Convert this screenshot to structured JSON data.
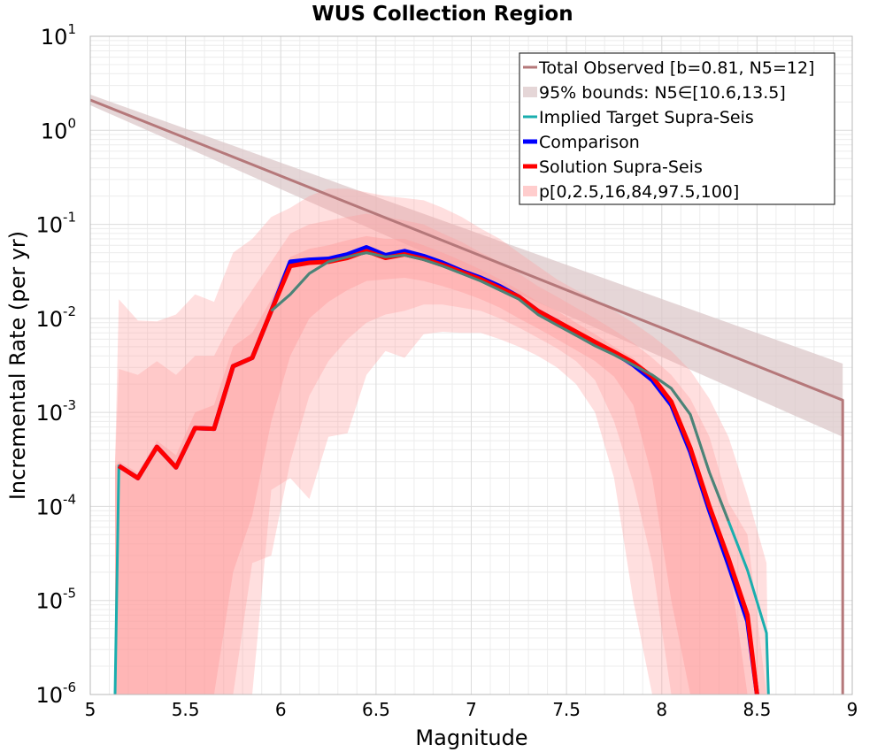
{
  "chart_data": {
    "type": "line",
    "title": "WUS Collection Region",
    "xlabel": "Magnitude",
    "ylabel": "Incremental Rate (per yr)",
    "xlim": [
      5,
      9
    ],
    "ylim": [
      1e-06,
      10
    ],
    "yscale": "log",
    "grid": true,
    "legend_position": "top-right",
    "x_ticks": [
      "5",
      "5.5",
      "6",
      "6.5",
      "7",
      "7.5",
      "8",
      "8.5",
      "9"
    ],
    "y_tick_exponents": [
      "-6",
      "-5",
      "-4",
      "-3",
      "-2",
      "-1",
      "0",
      "1"
    ],
    "y_tick_base": "10",
    "x": [
      5.15,
      5.25,
      5.35,
      5.45,
      5.55,
      5.65,
      5.75,
      5.85,
      5.95,
      6.05,
      6.15,
      6.25,
      6.35,
      6.45,
      6.55,
      6.65,
      6.75,
      6.85,
      6.95,
      7.05,
      7.15,
      7.25,
      7.35,
      7.45,
      7.55,
      7.65,
      7.75,
      7.85,
      7.95,
      8.05,
      8.15,
      8.25,
      8.35,
      8.45,
      8.55
    ],
    "series": [
      {
        "name": "Total Observed [b=0.81, N5=12]",
        "role": "line",
        "color": "#b5787a",
        "x": [
          5.0,
          8.95,
          8.95
        ],
        "values": [
          2.1,
          0.00135,
          1e-06
        ]
      },
      {
        "name": "95% bounds: N5∈[10.6,13.5]",
        "role": "band",
        "color": "#dcc8ca",
        "x": [
          5.0,
          8.95
        ],
        "lower": [
          1.85,
          0.00055
        ],
        "upper": [
          2.4,
          0.0033
        ]
      },
      {
        "name": "Implied Target Supra-Seis",
        "role": "line",
        "color": "#1aaeae",
        "x": [
          5.13,
          5.15,
          5.25,
          5.35,
          5.45,
          5.55,
          5.65,
          5.75,
          5.85,
          5.95,
          6.05,
          6.15,
          6.25,
          6.35,
          6.45,
          6.55,
          6.65,
          6.75,
          6.85,
          6.95,
          7.05,
          7.15,
          7.25,
          7.35,
          7.45,
          7.55,
          7.65,
          7.75,
          7.85,
          7.95,
          8.05,
          8.15,
          8.25,
          8.35,
          8.45,
          8.55,
          8.56
        ],
        "values": [
          1e-06,
          0.00027,
          0.0002,
          0.00043,
          0.00026,
          0.00068,
          0.00067,
          0.0031,
          0.0038,
          0.012,
          0.018,
          0.03,
          0.04,
          0.045,
          0.05,
          0.045,
          0.047,
          0.042,
          0.036,
          0.03,
          0.025,
          0.02,
          0.016,
          0.011,
          0.0085,
          0.0066,
          0.0051,
          0.0041,
          0.0032,
          0.0025,
          0.0018,
          0.00095,
          0.00023,
          7e-05,
          2.1e-05,
          4.5e-06,
          1e-06
        ]
      },
      {
        "name": "Comparison",
        "role": "line",
        "color": "#0000ff",
        "x": [
          5.15,
          5.25,
          5.35,
          5.45,
          5.55,
          5.65,
          5.75,
          5.85,
          5.95,
          6.05,
          6.15,
          6.25,
          6.35,
          6.45,
          6.55,
          6.65,
          6.75,
          6.85,
          6.95,
          7.05,
          7.15,
          7.25,
          7.35,
          7.45,
          7.55,
          7.65,
          7.75,
          7.85,
          7.95,
          8.05,
          8.15,
          8.25,
          8.35,
          8.45,
          8.5
        ],
        "values": [
          0.00027,
          0.0002,
          0.00043,
          0.00026,
          0.00068,
          0.00067,
          0.0031,
          0.0038,
          0.012,
          0.04,
          0.042,
          0.043,
          0.048,
          0.057,
          0.047,
          0.052,
          0.046,
          0.039,
          0.032,
          0.027,
          0.022,
          0.017,
          0.012,
          0.0093,
          0.0071,
          0.0054,
          0.0043,
          0.0032,
          0.0022,
          0.0012,
          0.00038,
          9e-05,
          2.4e-05,
          6e-06,
          1e-06
        ]
      },
      {
        "name": "Solution Supra-Seis",
        "role": "line",
        "color": "#ff0000",
        "x": [
          5.15,
          5.25,
          5.35,
          5.45,
          5.55,
          5.65,
          5.75,
          5.85,
          5.95,
          6.05,
          6.15,
          6.25,
          6.35,
          6.45,
          6.55,
          6.65,
          6.75,
          6.85,
          6.95,
          7.05,
          7.15,
          7.25,
          7.35,
          7.45,
          7.55,
          7.65,
          7.75,
          7.85,
          7.95,
          8.05,
          8.15,
          8.25,
          8.35,
          8.45,
          8.5
        ],
        "values": [
          0.00027,
          0.0002,
          0.00043,
          0.00026,
          0.00068,
          0.00067,
          0.0031,
          0.0038,
          0.012,
          0.036,
          0.039,
          0.04,
          0.044,
          0.052,
          0.044,
          0.048,
          0.043,
          0.037,
          0.031,
          0.026,
          0.021,
          0.017,
          0.012,
          0.0093,
          0.0072,
          0.0056,
          0.0044,
          0.0034,
          0.0024,
          0.0013,
          0.00042,
          0.0001,
          2.8e-05,
          7e-06,
          1e-06
        ]
      },
      {
        "name": "p[0,2.5,16,84,97.5,100]",
        "role": "percentile-bands",
        "color": "#ff9b9b",
        "x": [
          5.13,
          5.15,
          5.25,
          5.35,
          5.45,
          5.55,
          5.65,
          5.75,
          5.85,
          5.95,
          6.05,
          6.15,
          6.25,
          6.35,
          6.45,
          6.55,
          6.65,
          6.75,
          6.85,
          6.95,
          7.05,
          7.15,
          7.25,
          7.35,
          7.45,
          7.55,
          7.65,
          7.75,
          7.85,
          7.95,
          8.05,
          8.15,
          8.25,
          8.35,
          8.45,
          8.55,
          8.56
        ],
        "p0": [
          1e-06,
          1e-06,
          1e-06,
          1e-06,
          1e-06,
          1e-06,
          1e-06,
          1e-06,
          1e-06,
          0.00015,
          0.0002,
          0.00012,
          0.00055,
          0.0006,
          0.0025,
          0.0045,
          0.0038,
          0.0068,
          0.0072,
          0.007,
          0.007,
          0.006,
          0.005,
          0.004,
          0.003,
          0.002,
          0.001,
          0.0002,
          1e-05,
          1e-06,
          1e-06,
          1e-06,
          1e-06,
          1e-06,
          1e-06,
          1e-06,
          1e-06
        ],
        "p2_5": [
          1e-06,
          1e-06,
          1e-06,
          1e-06,
          1e-06,
          1e-06,
          1e-06,
          1e-06,
          2.5e-05,
          3e-05,
          0.0003,
          0.0015,
          0.0035,
          0.006,
          0.009,
          0.011,
          0.012,
          0.014,
          0.014,
          0.013,
          0.012,
          0.01,
          0.008,
          0.0062,
          0.0048,
          0.0035,
          0.0022,
          0.0008,
          0.00018,
          2.5e-05,
          1e-06,
          1e-06,
          1e-06,
          1e-06,
          1e-06,
          1e-06,
          1e-06
        ],
        "p16": [
          1e-06,
          1e-06,
          1e-06,
          1e-06,
          1e-06,
          1e-06,
          1e-06,
          2e-05,
          8e-05,
          0.0008,
          0.004,
          0.01,
          0.015,
          0.02,
          0.025,
          0.026,
          0.027,
          0.025,
          0.022,
          0.019,
          0.016,
          0.013,
          0.01,
          0.0078,
          0.006,
          0.0046,
          0.0035,
          0.0024,
          0.0012,
          0.0002,
          1e-05,
          1e-06,
          1e-06,
          1e-06,
          1e-06,
          1e-06,
          1e-06
        ],
        "p84": [
          0.00027,
          0.0003,
          0.00023,
          0.0005,
          0.00035,
          0.001,
          0.0012,
          0.005,
          0.007,
          0.016,
          0.045,
          0.055,
          0.06,
          0.068,
          0.075,
          0.07,
          0.07,
          0.06,
          0.05,
          0.041,
          0.033,
          0.026,
          0.02,
          0.015,
          0.012,
          0.009,
          0.0068,
          0.005,
          0.0038,
          0.0025,
          0.0012,
          0.00042,
          0.00011,
          2.8e-05,
          1e-06,
          1e-06,
          1e-06
        ],
        "p97_5": [
          0.00028,
          0.0029,
          0.0025,
          0.0035,
          0.0025,
          0.004,
          0.004,
          0.01,
          0.02,
          0.04,
          0.08,
          0.1,
          0.11,
          0.12,
          0.13,
          0.12,
          0.11,
          0.1,
          0.08,
          0.065,
          0.05,
          0.04,
          0.03,
          0.022,
          0.017,
          0.013,
          0.01,
          0.0075,
          0.0055,
          0.0038,
          0.0025,
          0.0014,
          0.00055,
          0.00011,
          5e-05,
          1e-06,
          1e-06
        ],
        "p100": [
          0.0003,
          0.016,
          0.0095,
          0.0093,
          0.011,
          0.018,
          0.015,
          0.05,
          0.07,
          0.12,
          0.15,
          0.2,
          0.24,
          0.24,
          0.22,
          0.2,
          0.19,
          0.18,
          0.15,
          0.12,
          0.09,
          0.07,
          0.05,
          0.036,
          0.026,
          0.02,
          0.016,
          0.012,
          0.009,
          0.0065,
          0.0045,
          0.0028,
          0.0014,
          0.00055,
          0.00013,
          2.5e-05,
          1e-06
        ]
      }
    ]
  }
}
